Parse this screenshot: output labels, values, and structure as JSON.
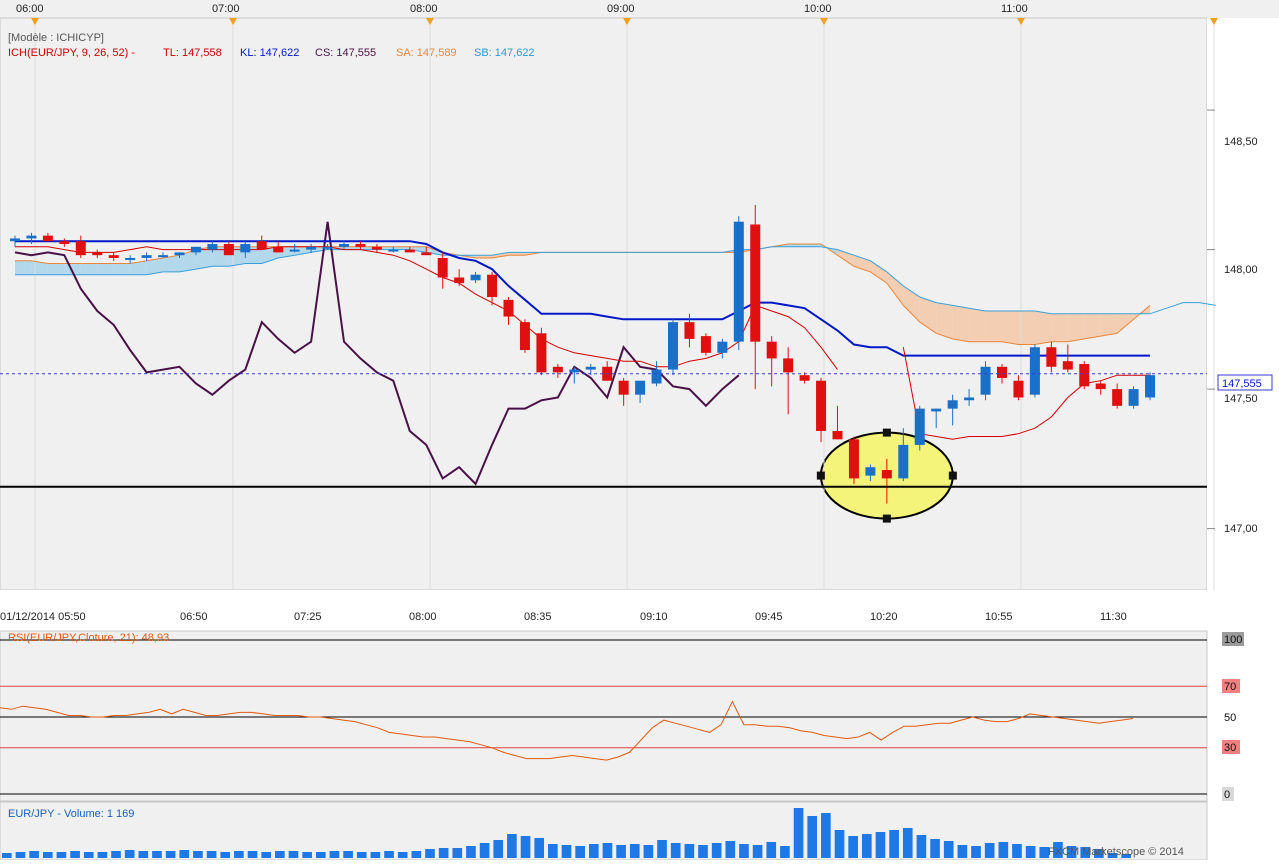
{
  "top_axis": {
    "hours": [
      "06:00",
      "07:00",
      "08:00",
      "09:00",
      "10:00",
      "11:00"
    ]
  },
  "legend": {
    "model": "[Modèle : ICHICYP]",
    "indicator": "ICH(EUR/JPY, 9, 26, 52) -",
    "tl": "TL: 147,558",
    "kl": "KL: 147,622",
    "cs": "CS: 147,555",
    "sa": "SA: 147,589",
    "sb": "SB: 147,622"
  },
  "price_axis": {
    "ticks": [
      "148,50",
      "148,00",
      "147,50",
      "147,00"
    ],
    "current_price": "147,555"
  },
  "time_axis": {
    "labels": [
      "01/12/2014 05:50",
      "06:50",
      "07:25",
      "08:00",
      "08:35",
      "09:10",
      "09:45",
      "10:20",
      "10:55",
      "11:30"
    ]
  },
  "rsi_panel": {
    "title": "RSI(EUR/JPY,Cloture, 21): 48,93",
    "levels": [
      "100",
      "70",
      "50",
      "30",
      "0"
    ]
  },
  "volume_panel": {
    "title": "EUR/JPY - Volume: 1 169"
  },
  "watermark": "FXCM Marketscope © 2014",
  "colors": {
    "background": "#f0f0f0",
    "bull": "#1a6fc9",
    "bear": "#e01010",
    "tenkan": "#d40000",
    "kijun": "#0018c8",
    "chikou": "#4a1048",
    "senkou_a": "#e8863a",
    "senkou_b": "#3aa0d8",
    "cloud": "#a8d4ea",
    "cloud_bear": "#f5c8a8",
    "rsi": "#e05a10",
    "volume": "#1e78e6",
    "highlight": "#f4f47a"
  },
  "chart_data": {
    "type": "candlestick",
    "instrument": "EUR/JPY",
    "ylim": [
      146.78,
      148.83
    ],
    "candles": [
      {
        "o": 148.03,
        "h": 148.05,
        "l": 148.01,
        "c": 148.04
      },
      {
        "o": 148.04,
        "h": 148.06,
        "l": 148.02,
        "c": 148.05
      },
      {
        "o": 148.05,
        "h": 148.06,
        "l": 148.03,
        "c": 148.03
      },
      {
        "o": 148.03,
        "h": 148.04,
        "l": 148.01,
        "c": 148.02
      },
      {
        "o": 148.03,
        "h": 148.05,
        "l": 147.97,
        "c": 147.98
      },
      {
        "o": 147.99,
        "h": 148.0,
        "l": 147.97,
        "c": 147.98
      },
      {
        "o": 147.98,
        "h": 147.99,
        "l": 147.96,
        "c": 147.97
      },
      {
        "o": 147.97,
        "h": 147.98,
        "l": 147.95,
        "c": 147.97
      },
      {
        "o": 147.97,
        "h": 147.99,
        "l": 147.96,
        "c": 147.98
      },
      {
        "o": 147.98,
        "h": 147.99,
        "l": 147.97,
        "c": 147.98
      },
      {
        "o": 147.98,
        "h": 147.99,
        "l": 147.97,
        "c": 147.99
      },
      {
        "o": 147.99,
        "h": 148.01,
        "l": 147.98,
        "c": 148.01
      },
      {
        "o": 148.0,
        "h": 148.03,
        "l": 147.99,
        "c": 148.02
      },
      {
        "o": 148.02,
        "h": 148.03,
        "l": 147.98,
        "c": 147.98
      },
      {
        "o": 147.99,
        "h": 148.03,
        "l": 147.97,
        "c": 148.02
      },
      {
        "o": 148.03,
        "h": 148.05,
        "l": 148.0,
        "c": 148.0
      },
      {
        "o": 148.01,
        "h": 148.03,
        "l": 147.99,
        "c": 147.99
      },
      {
        "o": 148.0,
        "h": 148.02,
        "l": 147.99,
        "c": 148.0
      },
      {
        "o": 148.0,
        "h": 148.02,
        "l": 147.99,
        "c": 148.01
      },
      {
        "o": 148.01,
        "h": 148.02,
        "l": 148.0,
        "c": 148.01
      },
      {
        "o": 148.01,
        "h": 148.03,
        "l": 148.0,
        "c": 148.02
      },
      {
        "o": 148.02,
        "h": 148.03,
        "l": 148.0,
        "c": 148.01
      },
      {
        "o": 148.01,
        "h": 148.02,
        "l": 147.99,
        "c": 148.0
      },
      {
        "o": 148.0,
        "h": 148.01,
        "l": 147.99,
        "c": 148.0
      },
      {
        "o": 148.0,
        "h": 148.01,
        "l": 147.99,
        "c": 147.99
      },
      {
        "o": 147.99,
        "h": 148.01,
        "l": 147.98,
        "c": 147.98
      },
      {
        "o": 147.97,
        "h": 147.99,
        "l": 147.86,
        "c": 147.9
      },
      {
        "o": 147.9,
        "h": 147.93,
        "l": 147.87,
        "c": 147.88
      },
      {
        "o": 147.89,
        "h": 147.92,
        "l": 147.88,
        "c": 147.91
      },
      {
        "o": 147.91,
        "h": 147.92,
        "l": 147.8,
        "c": 147.83
      },
      {
        "o": 147.82,
        "h": 147.83,
        "l": 147.73,
        "c": 147.76
      },
      {
        "o": 147.74,
        "h": 147.75,
        "l": 147.63,
        "c": 147.64
      },
      {
        "o": 147.7,
        "h": 147.72,
        "l": 147.55,
        "c": 147.56
      },
      {
        "o": 147.58,
        "h": 147.59,
        "l": 147.54,
        "c": 147.56
      },
      {
        "o": 147.56,
        "h": 147.58,
        "l": 147.52,
        "c": 147.57
      },
      {
        "o": 147.57,
        "h": 147.59,
        "l": 147.55,
        "c": 147.58
      },
      {
        "o": 147.58,
        "h": 147.6,
        "l": 147.53,
        "c": 147.53
      },
      {
        "o": 147.53,
        "h": 147.54,
        "l": 147.44,
        "c": 147.48
      },
      {
        "o": 147.48,
        "h": 147.53,
        "l": 147.45,
        "c": 147.53
      },
      {
        "o": 147.52,
        "h": 147.6,
        "l": 147.51,
        "c": 147.57
      },
      {
        "o": 147.57,
        "h": 147.75,
        "l": 147.55,
        "c": 147.74
      },
      {
        "o": 147.74,
        "h": 147.77,
        "l": 147.65,
        "c": 147.68
      },
      {
        "o": 147.69,
        "h": 147.7,
        "l": 147.62,
        "c": 147.63
      },
      {
        "o": 147.63,
        "h": 147.68,
        "l": 147.61,
        "c": 147.67
      },
      {
        "o": 147.67,
        "h": 148.12,
        "l": 147.64,
        "c": 148.1
      },
      {
        "o": 148.09,
        "h": 148.16,
        "l": 147.5,
        "c": 147.67
      },
      {
        "o": 147.67,
        "h": 147.69,
        "l": 147.51,
        "c": 147.61
      },
      {
        "o": 147.61,
        "h": 147.65,
        "l": 147.41,
        "c": 147.56
      },
      {
        "o": 147.55,
        "h": 147.56,
        "l": 147.52,
        "c": 147.53
      },
      {
        "o": 147.53,
        "h": 147.54,
        "l": 147.31,
        "c": 147.35
      },
      {
        "o": 147.35,
        "h": 147.44,
        "l": 147.32,
        "c": 147.32
      },
      {
        "o": 147.32,
        "h": 147.33,
        "l": 147.16,
        "c": 147.18
      },
      {
        "o": 147.19,
        "h": 147.23,
        "l": 147.17,
        "c": 147.22
      },
      {
        "o": 147.21,
        "h": 147.25,
        "l": 147.09,
        "c": 147.18
      },
      {
        "o": 147.18,
        "h": 147.36,
        "l": 147.17,
        "c": 147.3
      },
      {
        "o": 147.3,
        "h": 147.44,
        "l": 147.28,
        "c": 147.43
      },
      {
        "o": 147.42,
        "h": 147.43,
        "l": 147.36,
        "c": 147.43
      },
      {
        "o": 147.43,
        "h": 147.48,
        "l": 147.37,
        "c": 147.46
      },
      {
        "o": 147.46,
        "h": 147.5,
        "l": 147.44,
        "c": 147.47
      },
      {
        "o": 147.48,
        "h": 147.6,
        "l": 147.46,
        "c": 147.58
      },
      {
        "o": 147.58,
        "h": 147.59,
        "l": 147.52,
        "c": 147.54
      },
      {
        "o": 147.53,
        "h": 147.55,
        "l": 147.46,
        "c": 147.47
      },
      {
        "o": 147.48,
        "h": 147.66,
        "l": 147.47,
        "c": 147.65
      },
      {
        "o": 147.65,
        "h": 147.67,
        "l": 147.56,
        "c": 147.58
      },
      {
        "o": 147.6,
        "h": 147.66,
        "l": 147.56,
        "c": 147.57
      },
      {
        "o": 147.59,
        "h": 147.6,
        "l": 147.5,
        "c": 147.51
      },
      {
        "o": 147.52,
        "h": 147.53,
        "l": 147.48,
        "c": 147.5
      },
      {
        "o": 147.5,
        "h": 147.52,
        "l": 147.43,
        "c": 147.44
      },
      {
        "o": 147.44,
        "h": 147.51,
        "l": 147.43,
        "c": 147.5
      },
      {
        "o": 147.47,
        "h": 147.56,
        "l": 147.46,
        "c": 147.55
      }
    ],
    "tenkan": [
      148.01,
      148.01,
      148.01,
      148.0,
      147.99,
      147.99,
      147.99,
      148.0,
      148.01,
      148.0,
      148.0,
      148.0,
      148.0,
      148.0,
      148.0,
      148.0,
      148.01,
      148.01,
      148.01,
      148.01,
      148.0,
      148.0,
      147.99,
      147.98,
      147.96,
      147.93,
      147.9,
      147.88,
      147.84,
      147.81,
      147.78,
      147.73,
      147.68,
      147.65,
      147.63,
      147.62,
      147.61,
      147.6,
      147.6,
      147.58,
      147.58,
      147.6,
      147.61,
      147.63,
      147.67,
      147.8,
      147.78,
      147.76,
      147.72,
      147.65,
      147.57,
      null,
      null,
      null,
      147.65,
      147.34,
      147.33,
      147.32,
      147.33,
      147.33,
      147.33,
      147.34,
      147.36,
      147.4,
      147.47,
      147.52,
      147.53,
      147.55,
      147.55,
      147.55
    ],
    "kijun": [
      148.03,
      148.03,
      148.03,
      148.03,
      148.03,
      148.03,
      148.03,
      148.03,
      148.03,
      148.03,
      148.03,
      148.03,
      148.03,
      148.03,
      148.03,
      148.03,
      148.03,
      148.03,
      148.03,
      148.03,
      148.03,
      148.03,
      148.03,
      148.03,
      148.03,
      148.02,
      147.99,
      147.97,
      147.96,
      147.93,
      147.87,
      147.82,
      147.77,
      147.77,
      147.77,
      147.77,
      147.76,
      147.75,
      147.75,
      147.75,
      147.75,
      147.75,
      147.75,
      147.75,
      147.78,
      147.81,
      147.81,
      147.8,
      147.79,
      147.75,
      147.71,
      147.66,
      147.65,
      147.65,
      147.62,
      147.62,
      147.62,
      147.62,
      147.62,
      147.62,
      147.62,
      147.62,
      147.62,
      147.62,
      147.62,
      147.62,
      147.62,
      147.62,
      147.62,
      147.62
    ],
    "chikou": [
      147.99,
      147.98,
      147.99,
      147.98,
      147.86,
      147.78,
      147.73,
      147.64,
      147.56,
      147.57,
      147.58,
      147.52,
      147.48,
      147.53,
      147.57,
      147.74,
      147.68,
      147.63,
      147.67,
      148.1,
      147.67,
      147.61,
      147.56,
      147.53,
      147.35,
      147.3,
      147.18,
      147.22,
      147.16,
      147.3,
      147.43,
      147.43,
      147.46,
      147.47,
      147.58,
      147.54,
      147.47,
      147.65,
      147.58,
      147.57,
      147.51,
      147.5,
      147.44,
      147.5,
      147.55
    ],
    "senkou_a": [
      147.96,
      147.96,
      147.95,
      147.95,
      147.95,
      147.95,
      147.95,
      147.95,
      147.96,
      147.97,
      147.98,
      148.0,
      148.01,
      148.01,
      148.01,
      148.01,
      148.01,
      148.01,
      148.01,
      148.01,
      148.01,
      148.01,
      148.01,
      148.01,
      148.01,
      148.01,
      147.99,
      147.98,
      147.97,
      147.97,
      147.98,
      147.98,
      147.99,
      147.99,
      147.99,
      147.99,
      147.99,
      147.99,
      147.99,
      147.99,
      147.99,
      147.99,
      147.99,
      147.99,
      147.99,
      148.0,
      148.01,
      148.02,
      148.02,
      148.02,
      147.98,
      147.94,
      147.92,
      147.88,
      147.8,
      147.74,
      147.7,
      147.68,
      147.67,
      147.67,
      147.67,
      147.66,
      147.66,
      147.67,
      147.67,
      147.68,
      147.69,
      147.7,
      147.75,
      147.8
    ],
    "senkou_b": [
      147.91,
      147.91,
      147.91,
      147.91,
      147.91,
      147.91,
      147.91,
      147.91,
      147.91,
      147.92,
      147.92,
      147.93,
      147.94,
      147.94,
      147.95,
      147.95,
      147.97,
      147.98,
      147.99,
      148.0,
      148.0,
      148.0,
      148.0,
      148.0,
      148.0,
      147.99,
      147.98,
      147.98,
      147.98,
      147.98,
      147.99,
      147.99,
      147.99,
      147.99,
      147.99,
      147.99,
      147.99,
      147.99,
      147.99,
      147.99,
      147.99,
      147.99,
      147.99,
      147.99,
      148.0,
      148.0,
      148.01,
      148.01,
      148.01,
      148.01,
      148.0,
      147.98,
      147.96,
      147.92,
      147.87,
      147.83,
      147.81,
      147.8,
      147.79,
      147.78,
      147.78,
      147.78,
      147.78,
      147.77,
      147.77,
      147.77,
      147.77,
      147.77,
      147.77,
      147.77,
      147.79,
      147.81,
      147.81,
      147.8
    ],
    "support_level": 147.15,
    "rsi": [
      56,
      55,
      57,
      56,
      55,
      53,
      51,
      51,
      50,
      50,
      51,
      51,
      52,
      53,
      55,
      52,
      55,
      53,
      51,
      51,
      52,
      53,
      53,
      52,
      51,
      51,
      51,
      50,
      50,
      49,
      48,
      47,
      45,
      43,
      40,
      39,
      38,
      37,
      37,
      36,
      35,
      34,
      32,
      30,
      27,
      25,
      23,
      23,
      23,
      24,
      25,
      24,
      23,
      22,
      24,
      27,
      35,
      43,
      48,
      46,
      44,
      42,
      40,
      45,
      60,
      45,
      45,
      44,
      44,
      43,
      41,
      40,
      38,
      37,
      36,
      37,
      40,
      35,
      40,
      44,
      44,
      45,
      46,
      46,
      48,
      50,
      48,
      47,
      47,
      49,
      52,
      51,
      50,
      49,
      48,
      47,
      46,
      47,
      48,
      49
    ],
    "rsi_levels": [
      100,
      70,
      50,
      30,
      0
    ],
    "volume": [
      5,
      6,
      7,
      6,
      6,
      7,
      6,
      6,
      7,
      8,
      7,
      7,
      7,
      8,
      7,
      7,
      6,
      7,
      7,
      6,
      7,
      7,
      6,
      6,
      7,
      7,
      6,
      6,
      7,
      6,
      7,
      9,
      10,
      10,
      12,
      15,
      18,
      24,
      22,
      20,
      14,
      13,
      12,
      14,
      15,
      13,
      14,
      13,
      18,
      15,
      14,
      13,
      15,
      17,
      14,
      13,
      16,
      12,
      50,
      42,
      45,
      28,
      22,
      24,
      26,
      28,
      30,
      23,
      19,
      17,
      13,
      12,
      15,
      16,
      14,
      12,
      11,
      16,
      12,
      11,
      9,
      5,
      4
    ]
  }
}
